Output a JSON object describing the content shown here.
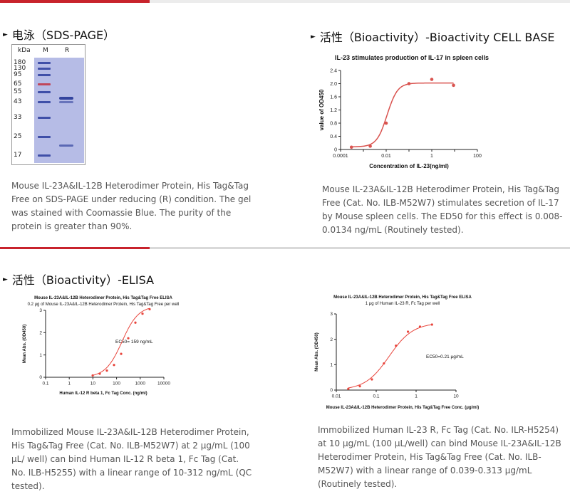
{
  "sections": {
    "sds": {
      "title": "电泳（SDS-PAGE）",
      "desc": "Mouse IL-23A&IL-12B Heterodimer Protein, His Tag&Tag Free on SDS-PAGE under reducing (R) condition. The gel was stained with Coomassie Blue. The purity of the protein is greater than 90%.",
      "gel": {
        "header_kda": "kDa",
        "lane_m": "M",
        "lane_r": "R",
        "markers": [
          "180",
          "130",
          "95",
          "65",
          "55",
          "43",
          "33",
          "25",
          "17"
        ]
      }
    },
    "bioactivity_cell": {
      "title": "活性（Bioactivity）-Bioactivity CELL BASE",
      "desc": "Mouse IL-23A&IL-12B Heterodimer Protein, His Tag&Tag Free (Cat. No. ILB-M52W7) stimulates secretion of IL-17 by Mouse spleen cells. The ED50 for this effect is 0.008-0.0134 ng/mL (Routinely tested)."
    },
    "elisa": {
      "title": "活性（Bioactivity）-ELISA"
    },
    "elisa_left_desc": "Immobilized Mouse IL-23A&IL-12B Heterodimer Protein, His Tag&Tag Free (Cat. No. ILB-M52W7) at 2 μg/mL (100 μL/ well) can bind Human IL-12 R beta 1, Fc Tag (Cat. No. ILB-H5255) with a linear range of 10-312 ng/mL (QC tested).",
    "elisa_right_desc": "Immobilized Human IL-23 R, Fc Tag (Cat. No. ILR-H5254) at 10 μg/mL (100 μL/well) can bind Mouse IL-23A&IL-12B Heterodimer Protein, His Tag&Tag Free (Cat. No. ILB-M52W7) with a linear range of 0.039-0.313 μg/mL (Routinely tested)."
  },
  "chart_data": [
    {
      "type": "scatter",
      "title": "IL-23 stimulates production of IL-17 in spleen cells",
      "xlabel": "Concentration of IL-23(ng/ml)",
      "ylabel": "value of OD450",
      "x_scale": "log",
      "xlim": [
        0.0001,
        100
      ],
      "ylim": [
        0,
        2.4
      ],
      "x_ticks": [
        "0.0001",
        "0.001",
        "0.01",
        "0.1",
        "1",
        "10",
        "100"
      ],
      "x_tick_labels": [
        "0.0001",
        "",
        "0.01",
        "",
        "1",
        "",
        "100"
      ],
      "y_ticks": [
        "0",
        "0.4",
        "0.8",
        "1.2",
        "1.6",
        "2.0",
        "2.4"
      ],
      "x": [
        0.0003,
        0.002,
        0.01,
        0.1,
        1,
        9
      ],
      "y": [
        0.07,
        0.1,
        0.8,
        2.0,
        2.13,
        1.95
      ],
      "fit_curve": true,
      "color": "#d9534f"
    },
    {
      "type": "scatter",
      "title": "Mouse IL-23A&IL-12B Heterodimer Protein, His Tag&Tag Free ELISA",
      "subtitle": "0.2 μg of Mouse IL-23A&IL-12B Heterodimer Protein, His Tag&Tag Free per well",
      "xlabel": "Human IL-12 R beta 1, Fc Tag Conc. (ng/ml)",
      "ylabel": "Mean Abs. (OD450)",
      "x_scale": "log",
      "xlim": [
        0.1,
        10000
      ],
      "ylim": [
        0,
        3
      ],
      "x_ticks": [
        "0.1",
        "1",
        "10",
        "100",
        "1000",
        "10000"
      ],
      "y_ticks": [
        "0",
        "1",
        "2",
        "3"
      ],
      "annotation": "EC50= 159 ng/mL",
      "x": [
        9.8,
        19.5,
        39,
        78,
        156,
        312,
        625,
        1250,
        2500
      ],
      "y": [
        0.08,
        0.16,
        0.3,
        0.55,
        1.05,
        1.75,
        2.45,
        2.85,
        3.05
      ],
      "fit_curve": true,
      "color": "#e8453c"
    },
    {
      "type": "scatter",
      "title": "Mouse IL-23A&IL-12B Heterodimer Protein, His Tag&Tag Free ELISA",
      "subtitle": "1 μg of Human IL-23 R, Fc Tag per well",
      "xlabel": "Mouse IL-23A&IL-12B Heterodimer Protein, His Tag&Tag Free Conc. (μg/ml)",
      "ylabel": "Mean Abs. (OD450)",
      "x_scale": "log",
      "xlim": [
        0.01,
        10
      ],
      "ylim": [
        0,
        3
      ],
      "x_ticks": [
        "0.01",
        "0.1",
        "1",
        "10"
      ],
      "y_ticks": [
        "0",
        "1",
        "2",
        "3"
      ],
      "annotation": "EC50=0.21 μg/mL",
      "x": [
        0.02,
        0.039,
        0.078,
        0.156,
        0.313,
        0.625,
        1.25,
        2.5
      ],
      "y": [
        0.05,
        0.15,
        0.42,
        1.05,
        1.75,
        2.3,
        2.5,
        2.58
      ],
      "fit_curve": true,
      "color": "#e8453c"
    }
  ]
}
